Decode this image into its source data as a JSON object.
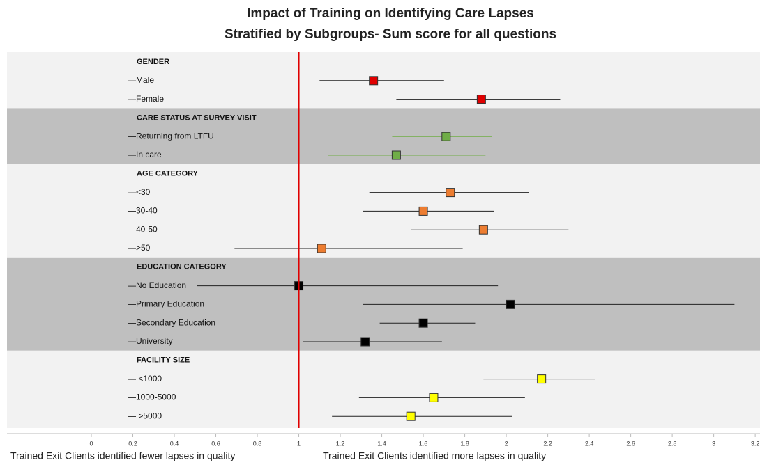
{
  "chart_data": {
    "type": "forest",
    "title": "Impact of Training on Identifying Care Lapses",
    "subtitle": "Stratified by Subgroups- Sum score for all questions",
    "xlim": [
      -0.4,
      3.25
    ],
    "xticks": [
      0,
      0.2,
      0.4,
      0.6,
      0.8,
      1,
      1.2,
      1.4,
      1.6,
      1.8,
      2,
      2.2,
      2.4,
      2.6,
      2.8,
      3,
      3.2
    ],
    "reference_line": 1,
    "reference_color": "#e00000",
    "annotations": [
      "Trained Exit Clients identified fewer lapses in quality",
      "Trained Exit Clients identified more lapses in quality"
    ],
    "groups": [
      {
        "name": "GENDER",
        "color": "#e00000",
        "band_color": "#f2f2f2",
        "rows": [
          {
            "label": "—Male",
            "value": 1.36,
            "lower": 1.1,
            "upper": 1.7
          },
          {
            "label": "—Female",
            "value": 1.88,
            "lower": 1.47,
            "upper": 2.26
          }
        ]
      },
      {
        "name": "CARE STATUS AT SURVEY VISIT",
        "color": "#70ad47",
        "band_color": "#bfbfbf",
        "rows": [
          {
            "label": "—Returning from LTFU",
            "value": 1.71,
            "lower": 1.45,
            "upper": 1.93
          },
          {
            "label": "—In care",
            "value": 1.47,
            "lower": 1.14,
            "upper": 1.9
          }
        ]
      },
      {
        "name": "AGE CATEGORY",
        "color": "#ed7d31",
        "band_color": "#f2f2f2",
        "rows": [
          {
            "label": "—<30",
            "value": 1.73,
            "lower": 1.34,
            "upper": 2.11
          },
          {
            "label": "—30-40",
            "value": 1.6,
            "lower": 1.31,
            "upper": 1.94
          },
          {
            "label": "—40-50",
            "value": 1.89,
            "lower": 1.54,
            "upper": 2.3
          },
          {
            "label": "—>50",
            "value": 1.11,
            "lower": 0.69,
            "upper": 1.79
          }
        ]
      },
      {
        "name": "EDUCATION CATEGORY",
        "color": "#000000",
        "band_color": "#bfbfbf",
        "rows": [
          {
            "label": "—No Education",
            "value": 1.0,
            "lower": 0.51,
            "upper": 1.96
          },
          {
            "label": "—Primary Education",
            "value": 2.02,
            "lower": 1.31,
            "upper": 3.1
          },
          {
            "label": "—Secondary Education",
            "value": 1.6,
            "lower": 1.39,
            "upper": 1.85
          },
          {
            "label": "—University",
            "value": 1.32,
            "lower": 1.02,
            "upper": 1.69
          }
        ]
      },
      {
        "name": "FACILITY SIZE",
        "color": "#ffff00",
        "band_color": "#f2f2f2",
        "rows": [
          {
            "label": "— <1000",
            "value": 2.17,
            "lower": 1.89,
            "upper": 2.43
          },
          {
            "label": "—1000-5000",
            "value": 1.65,
            "lower": 1.29,
            "upper": 2.09
          },
          {
            "label": "— >5000",
            "value": 1.54,
            "lower": 1.16,
            "upper": 2.03
          }
        ]
      }
    ]
  }
}
